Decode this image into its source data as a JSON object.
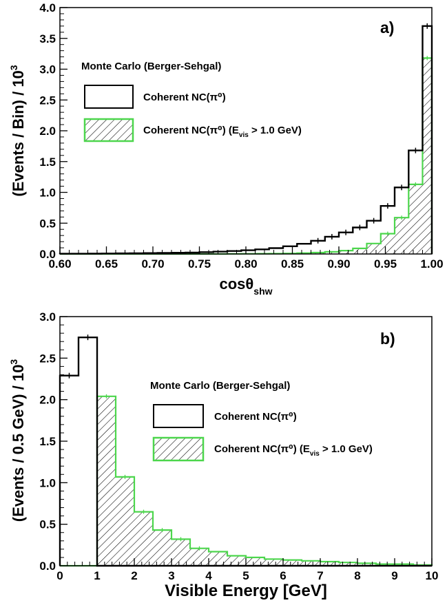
{
  "chart_data": [
    {
      "type": "histogram",
      "panel_label": "a)",
      "xlabel": "cosθ",
      "xlabel_sub": "shw",
      "ylabel": "(Events / Bin) / 10",
      "ylabel_sup": "3",
      "xlim": [
        0.6,
        1.0
      ],
      "ylim": [
        0.0,
        4.0
      ],
      "x_ticks": [
        0.6,
        0.65,
        0.7,
        0.75,
        0.8,
        0.85,
        0.9,
        0.95,
        1.0
      ],
      "x_tick_labels": [
        "0.60",
        "0.65",
        "0.70",
        "0.75",
        "0.80",
        "0.85",
        "0.90",
        "0.95",
        "1.00"
      ],
      "y_ticks": [
        0.0,
        0.5,
        1.0,
        1.5,
        2.0,
        2.5,
        3.0,
        3.5,
        4.0
      ],
      "y_tick_labels": [
        "0.0",
        "0.5",
        "1.0",
        "1.5",
        "2.0",
        "2.5",
        "3.0",
        "3.5",
        "4.0"
      ],
      "legend_title": "Monte Carlo (Berger-Sehgal)",
      "bin_edges": [
        0.6,
        0.615,
        0.63,
        0.645,
        0.66,
        0.675,
        0.69,
        0.705,
        0.72,
        0.735,
        0.75,
        0.765,
        0.78,
        0.795,
        0.81,
        0.825,
        0.84,
        0.855,
        0.87,
        0.885,
        0.9,
        0.915,
        0.93,
        0.945,
        0.96,
        0.975,
        0.99,
        1.0
      ],
      "series": [
        {
          "name": "Coherent NC(π⁰)",
          "color": "#000000",
          "style": "outline",
          "values": [
            0.005,
            0.005,
            0.006,
            0.008,
            0.01,
            0.012,
            0.014,
            0.017,
            0.02,
            0.024,
            0.03,
            0.038,
            0.048,
            0.06,
            0.075,
            0.095,
            0.125,
            0.165,
            0.215,
            0.28,
            0.35,
            0.43,
            0.54,
            0.78,
            1.08,
            1.68,
            3.7
          ]
        },
        {
          "name": "Coherent NC(π⁰) (E_vis > 1.0 GeV)",
          "color": "#4cd64c",
          "style": "hatched",
          "values": [
            0.0,
            0.0,
            0.0,
            0.0,
            0.0,
            0.0,
            0.0,
            0.0,
            0.0,
            0.0,
            0.0,
            0.0,
            0.002,
            0.003,
            0.004,
            0.006,
            0.009,
            0.014,
            0.022,
            0.035,
            0.055,
            0.09,
            0.17,
            0.33,
            0.59,
            1.13,
            3.18
          ]
        }
      ]
    },
    {
      "type": "histogram",
      "panel_label": "b)",
      "xlabel": "Visible Energy [GeV]",
      "ylabel": "(Events / 0.5 GeV) / 10",
      "ylabel_sup": "3",
      "xlim": [
        0,
        10
      ],
      "ylim": [
        0.0,
        3.0
      ],
      "x_ticks": [
        0,
        1,
        2,
        3,
        4,
        5,
        6,
        7,
        8,
        9,
        10
      ],
      "x_tick_labels": [
        "0",
        "1",
        "2",
        "3",
        "4",
        "5",
        "6",
        "7",
        "8",
        "9",
        "10"
      ],
      "y_ticks": [
        0.0,
        0.5,
        1.0,
        1.5,
        2.0,
        2.5,
        3.0
      ],
      "y_tick_labels": [
        "0.0",
        "0.5",
        "1.0",
        "1.5",
        "2.0",
        "2.5",
        "3.0"
      ],
      "legend_title": "Monte Carlo (Berger-Sehgal)",
      "bin_edges": [
        0.0,
        0.5,
        1.0,
        1.5,
        2.0,
        2.5,
        3.0,
        3.5,
        4.0,
        4.5,
        5.0,
        5.5,
        6.0,
        6.5,
        7.0,
        7.5,
        8.0,
        8.5,
        9.0,
        9.5,
        10.0
      ],
      "series": [
        {
          "name": "Coherent NC(π⁰)",
          "color": "#000000",
          "style": "outline",
          "values": [
            2.29,
            2.75,
            0.0,
            0.0,
            0.0,
            0.0,
            0.0,
            0.0,
            0.0,
            0.0,
            0.0,
            0.0,
            0.0,
            0.0,
            0.0,
            0.0,
            0.0,
            0.0,
            0.0,
            0.0
          ]
        },
        {
          "name": "Coherent NC(π⁰) (E_vis > 1.0 GeV)",
          "color": "#4cd64c",
          "style": "hatched",
          "values": [
            0.0,
            0.0,
            2.04,
            1.07,
            0.65,
            0.43,
            0.32,
            0.21,
            0.17,
            0.12,
            0.1,
            0.08,
            0.07,
            0.06,
            0.05,
            0.04,
            0.03,
            0.02,
            0.02,
            0.01
          ]
        }
      ]
    }
  ],
  "legend": {
    "entry1_text": "Coherent NC(π⁰)",
    "entry2_text": "Coherent NC(π⁰) (E_vis > 1.0 GeV)"
  }
}
